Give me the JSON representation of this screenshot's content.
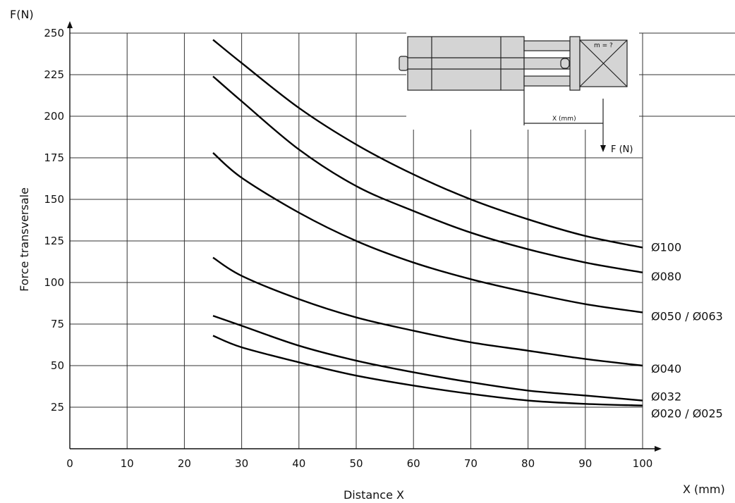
{
  "chart_data": {
    "type": "line",
    "title": "",
    "xlabel": "Distance X",
    "ylabel": "Force transversale",
    "y_unit_label": "F(N)",
    "x_unit_label": "X (mm)",
    "xlim": [
      0,
      100
    ],
    "ylim": [
      0,
      250
    ],
    "x_ticks": [
      "0",
      "10",
      "20",
      "30",
      "40",
      "50",
      "60",
      "70",
      "80",
      "90",
      "100"
    ],
    "y_ticks": [
      "25",
      "50",
      "75",
      "100",
      "125",
      "150",
      "175",
      "200",
      "225",
      "250"
    ],
    "grid": true,
    "series": [
      {
        "name": "Ø100",
        "x": [
          25,
          30,
          40,
          50,
          60,
          70,
          80,
          90,
          100
        ],
        "y": [
          246,
          232,
          205,
          183,
          165,
          150,
          138,
          128,
          121
        ]
      },
      {
        "name": "Ø080",
        "x": [
          25,
          30,
          40,
          50,
          60,
          70,
          80,
          90,
          100
        ],
        "y": [
          224,
          209,
          180,
          158,
          143,
          130,
          120,
          112,
          106
        ]
      },
      {
        "name": "Ø050 / Ø063",
        "x": [
          25,
          30,
          40,
          50,
          60,
          70,
          80,
          90,
          100
        ],
        "y": [
          178,
          163,
          142,
          125,
          112,
          102,
          94,
          87,
          82
        ]
      },
      {
        "name": "Ø040",
        "x": [
          25,
          30,
          40,
          50,
          60,
          70,
          80,
          90,
          100
        ],
        "y": [
          115,
          104,
          90,
          79,
          71,
          64,
          59,
          54,
          50
        ]
      },
      {
        "name": "Ø032",
        "x": [
          25,
          30,
          40,
          50,
          60,
          70,
          80,
          90,
          100
        ],
        "y": [
          80,
          74,
          62,
          53,
          46,
          40,
          35,
          32,
          29
        ]
      },
      {
        "name": "Ø020 / Ø025",
        "x": [
          25,
          30,
          40,
          50,
          60,
          70,
          80,
          90,
          100
        ],
        "y": [
          68,
          61,
          52,
          44,
          38,
          33,
          29,
          27,
          26
        ]
      }
    ]
  },
  "diagram": {
    "mass_label": "m = ?",
    "distance_label": "X (mm)",
    "force_label": "F (N)"
  }
}
